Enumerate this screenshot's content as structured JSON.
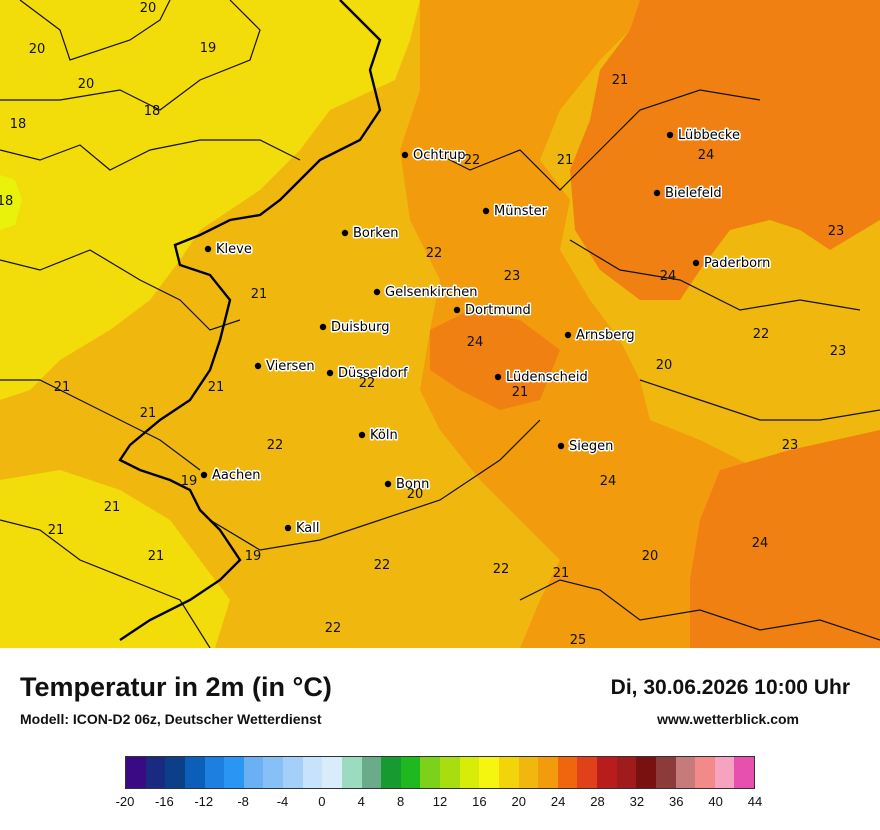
{
  "title": "Temperatur in 2m (in °C)",
  "subtitle": "Modell: ICON-D2 06z, Deutscher Wetterdienst",
  "datetime": "Di, 30.06.2026 10:00 Uhr",
  "website": "www.wetterblick.com",
  "colors": {
    "band_18_20": "#f2dc0a",
    "band_20_22": "#f0b80e",
    "band_22_24": "#f29b0d",
    "band_24_26": "#f08012",
    "band_16_18": "#e8f20a",
    "border": "#111111"
  },
  "cities": [
    {
      "name": "Ochtrup"
    },
    {
      "name": "Lübbecke"
    },
    {
      "name": "Bielefeld"
    },
    {
      "name": "Münster"
    },
    {
      "name": "Borken"
    },
    {
      "name": "Kleve"
    },
    {
      "name": "Paderborn"
    },
    {
      "name": "Gelsenkirchen"
    },
    {
      "name": "Dortmund"
    },
    {
      "name": "Duisburg"
    },
    {
      "name": "Arnsberg"
    },
    {
      "name": "Viersen"
    },
    {
      "name": "Düsseldorf"
    },
    {
      "name": "Lüdenscheid"
    },
    {
      "name": "Köln"
    },
    {
      "name": "Siegen"
    },
    {
      "name": "Aachen"
    },
    {
      "name": "Bonn"
    },
    {
      "name": "Kall"
    }
  ],
  "values": [
    "20",
    "19",
    "20",
    "20",
    "18",
    "18",
    "18",
    "21",
    "22",
    "21",
    "24",
    "23",
    "22",
    "23",
    "24",
    "21",
    "22",
    "24",
    "23",
    "21",
    "20",
    "22",
    "21",
    "21",
    "21",
    "22",
    "23",
    "19",
    "21",
    "20",
    "24",
    "21",
    "21",
    "20",
    "24",
    "19",
    "22",
    "22",
    "21",
    "22",
    "25"
  ],
  "scale": {
    "colors": [
      "#3a0a84",
      "#1a2a80",
      "#0b3f88",
      "#0b5fb8",
      "#1d7fe0",
      "#2a95f2",
      "#6cb0f4",
      "#87c0f6",
      "#a4cff8",
      "#c7e2fb",
      "#d9ecfc",
      "#9bdcc0",
      "#6aab8a",
      "#179b30",
      "#1fb81f",
      "#7cd11a",
      "#a8de10",
      "#d7ec08",
      "#f5f510",
      "#f2d40b",
      "#f0b80e",
      "#f29b0d",
      "#f0660e",
      "#e0401a",
      "#b91c1c",
      "#a01b1b",
      "#7a1111",
      "#8c3a3a",
      "#c77a7a",
      "#f28a8a",
      "#f5a3c0",
      "#e850b0"
    ],
    "ticks": [
      "-20",
      "-16",
      "-12",
      "-8",
      "-4",
      "0",
      "4",
      "8",
      "12",
      "16",
      "20",
      "24",
      "28",
      "32",
      "36",
      "40",
      "44"
    ]
  }
}
